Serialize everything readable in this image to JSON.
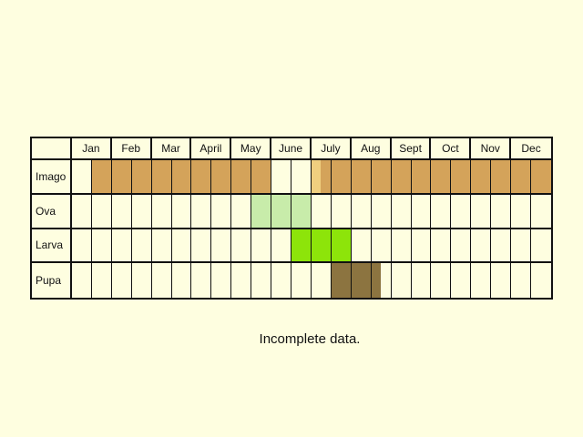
{
  "months": [
    "Jan",
    "Feb",
    "Mar",
    "April",
    "May",
    "June",
    "July",
    "Aug",
    "Sept",
    "Oct",
    "Nov",
    "Dec"
  ],
  "colors": {
    "background": "#fefee0",
    "grid": "#111111"
  },
  "stages": [
    {
      "label": "Imago",
      "color": "#d4a35a",
      "light_color": "#f0cf7f",
      "periods": [
        [
          1,
          10
        ],
        [
          12.5,
          13
        ],
        [
          13,
          24
        ]
      ],
      "light_periods": [
        [
          12,
          12.5
        ]
      ]
    },
    {
      "label": "Ova",
      "color": "#c8ecaa",
      "periods": [
        [
          9,
          12
        ]
      ]
    },
    {
      "label": "Larva",
      "color": "#8de40a",
      "periods": [
        [
          11,
          14
        ]
      ]
    },
    {
      "label": "Pupa",
      "color": "#8c7440",
      "periods": [
        [
          13,
          15.5
        ]
      ]
    }
  ],
  "note": "Incomplete data."
}
